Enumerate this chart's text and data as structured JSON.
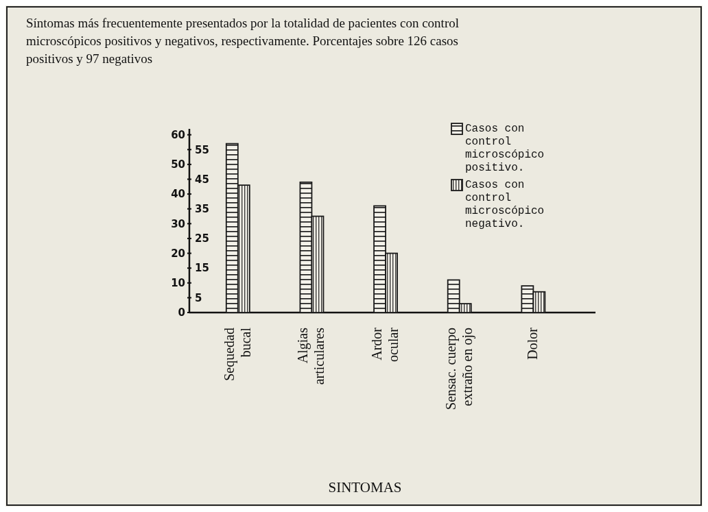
{
  "chart_data": {
    "type": "bar",
    "title": "Síntomas más frecuentemente presentados por la totalidad de pacientes con control microscópicos positivos y negativos, respectivamente. Porcentajes sobre 126 casos positivos y 97 negativos",
    "xlabel": "SINTOMAS",
    "categories": [
      "Sequedad bucal",
      "Algias articulares",
      "Ardor ocular",
      "Sensac. cuerpo extraño en ojo",
      "Dolor"
    ],
    "series": [
      {
        "name": "Casos con control microscópico positivo.",
        "color": "#1a1a1a",
        "values": [
          57,
          44,
          36,
          11,
          9
        ]
      },
      {
        "name": "Casos con control microscópico negativo.",
        "color": "#1a1a1a",
        "values": [
          43,
          32.5,
          20,
          3,
          7
        ]
      }
    ],
    "ylim": [
      0,
      62
    ],
    "yticks": [
      0,
      10,
      20,
      30,
      40,
      50,
      60
    ],
    "y2lim": [
      0,
      62
    ],
    "y2ticks": [
      5,
      15,
      25,
      35,
      45,
      55
    ],
    "legend": "top right"
  }
}
